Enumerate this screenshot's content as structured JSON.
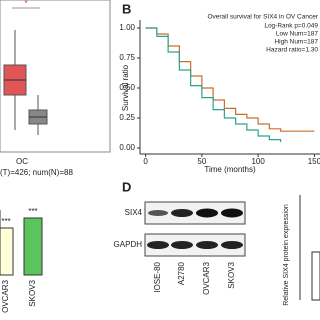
{
  "panel_a": {
    "star": "*",
    "group": "OC",
    "counts": "(T)=426; num(N)=88"
  },
  "chart_data": {
    "type": "line",
    "letter": "B",
    "title": "Overall survival for SIX4 in OV Cancer",
    "annotations": [
      "Log-Rank p=0.049",
      "Low Num=187",
      "High Num=187",
      "Hazard ratio=1.30"
    ],
    "x_label": "Time (months)",
    "y_label": "Survival ratio",
    "x": [
      0,
      10,
      20,
      30,
      40,
      50,
      60,
      70,
      80,
      90,
      100,
      110,
      120,
      130,
      140,
      150
    ],
    "series": [
      {
        "color": "#c8702a",
        "values": [
          1.0,
          0.95,
          0.85,
          0.72,
          0.6,
          0.5,
          0.4,
          0.33,
          0.28,
          0.25,
          0.2,
          0.16,
          0.14,
          0.14,
          0.14,
          0.14
        ]
      },
      {
        "color": "#2aa58c",
        "values": [
          1.0,
          0.93,
          0.8,
          0.65,
          0.52,
          0.42,
          0.32,
          0.25,
          0.2,
          0.15,
          0.1,
          0.07,
          0.05,
          null,
          null,
          null
        ]
      }
    ],
    "xlim": [
      -5,
      155
    ],
    "xticks": [
      0,
      50,
      100,
      150
    ],
    "ylim": [
      -0.05,
      1.05
    ],
    "yticks": [
      {
        "value": 0,
        "label": "0.00"
      },
      {
        "value": 0.25,
        "label": "0.25"
      },
      {
        "value": 0.5,
        "label": "0.50"
      },
      {
        "value": 0.75,
        "label": "0.75"
      },
      {
        "value": 1,
        "label": "1.00"
      }
    ]
  },
  "panel_c": {
    "stars": [
      "***",
      "***"
    ],
    "cells": [
      "OVCAR3",
      "SKOV3"
    ]
  },
  "panel_d": {
    "letter": "D",
    "proteins": [
      "SIX4",
      "GAPDH"
    ],
    "lanes": [
      "IOSE-80",
      "A2780",
      "OVCAR3",
      "SKOV3"
    ],
    "y_label": "Relative SIX4 protein expression"
  }
}
